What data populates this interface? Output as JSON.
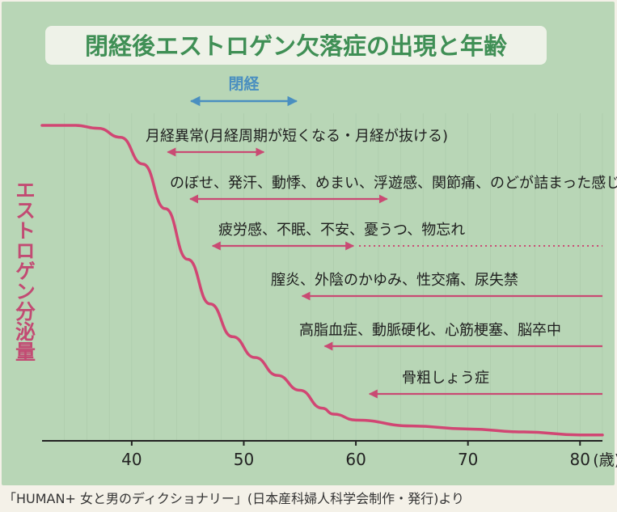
{
  "chart_data": {
    "type": "line",
    "title": "閉経後エストロゲン欠落症の出現と年齢",
    "ylabel": "エストロゲン分泌量",
    "xlabel": "",
    "x_unit_label": "(歳)",
    "xlim": [
      32,
      82
    ],
    "ylim": [
      0,
      100
    ],
    "x_ticks": [
      40,
      50,
      60,
      70,
      80
    ],
    "grid": true,
    "series": [
      {
        "name": "",
        "color": "#d14673",
        "x": [
          32,
          35,
          37,
          39,
          41,
          43,
          45,
          47,
          49,
          51,
          53,
          55,
          57,
          58,
          60,
          65,
          70,
          75,
          80,
          82
        ],
        "y": [
          100,
          100,
          99,
          96,
          87,
          72,
          55,
          40,
          29,
          22,
          16,
          11,
          5,
          3,
          1,
          -1,
          -2,
          -3,
          -4,
          -4
        ]
      }
    ],
    "menopause": {
      "label": "閉経",
      "from": 45,
      "to": 55,
      "color": "#4a8fc0"
    },
    "symptom_ranges": [
      {
        "label": "月経異常(月経周期が短くなる・月経が抜ける)",
        "start": 43,
        "end": 52,
        "ongoing": false
      },
      {
        "label": "のぼせ、発汗、動悸、めまい、浮遊感、関節痛、のどが詰まった感じ",
        "start": 45,
        "end": 63,
        "ongoing": false
      },
      {
        "label": "疲労感、不眠、不安、憂うつ、物忘れ",
        "start": 47,
        "end": 60,
        "ongoing": true
      },
      {
        "label": "膣炎、外陰のかゆみ、性交痛、尿失禁",
        "start": 55,
        "end": 82,
        "ongoing": false
      },
      {
        "label": "高脂血症、動脈硬化、心筋梗塞、脳卒中",
        "start": 57,
        "end": 82,
        "ongoing": false
      },
      {
        "label": "骨粗しょう症",
        "start": 61,
        "end": 82,
        "ongoing": false
      }
    ],
    "colors": {
      "curve": "#d14673",
      "arrow": "#c94a73",
      "title": "#3f8f55",
      "ylabel": "#c24b73",
      "background": "#b8d6b6",
      "grid": "#9fbfa0"
    }
  },
  "caption": "「HUMAN+ 女と男のディクショナリー」(日本産科婦人科学会制作・発行)より"
}
